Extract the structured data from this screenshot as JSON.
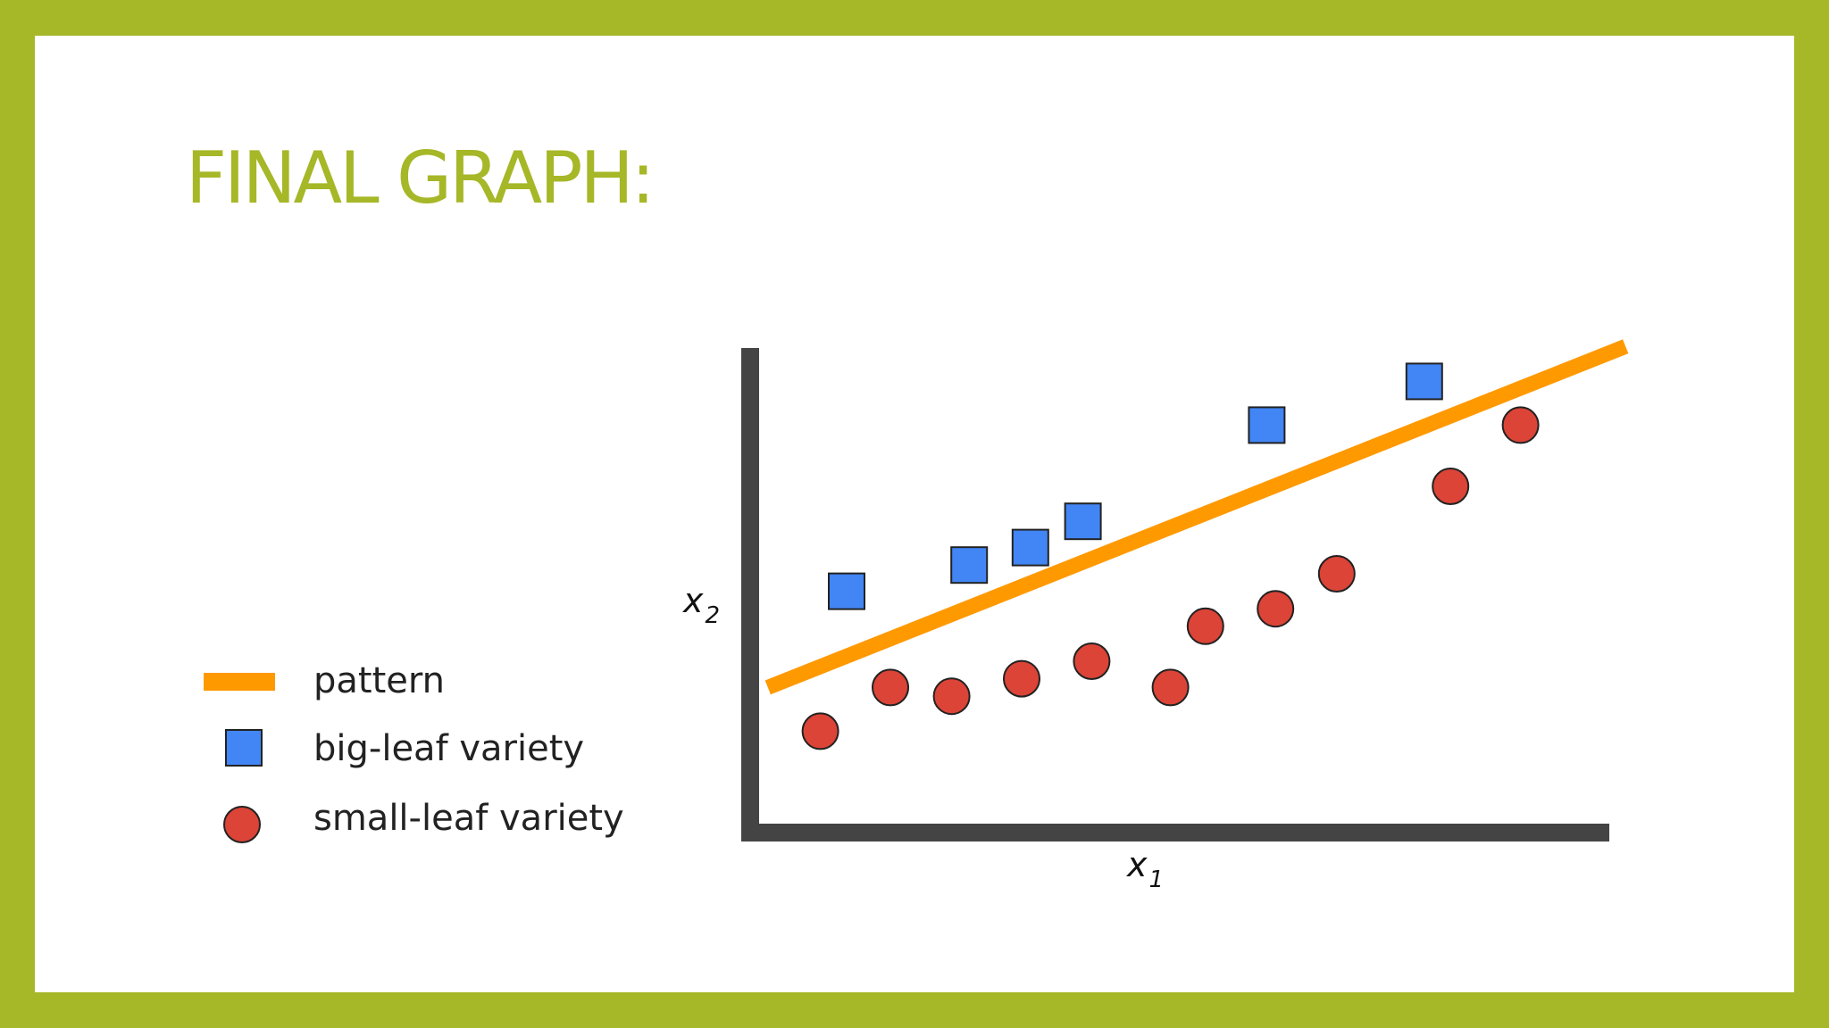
{
  "slide": {
    "title": "FINAL GRAPH:",
    "border_color": "#a6b727",
    "title_color": "#a6b727"
  },
  "chart_data": {
    "type": "scatter",
    "title": "",
    "xlabel": "x",
    "xlabel_subscript": "1",
    "ylabel": "x",
    "ylabel_subscript": "2",
    "grid": false,
    "legend_position": "left",
    "legend": [
      {
        "label": "pattern",
        "marker": "line",
        "color": "#ff9900"
      },
      {
        "label": "big-leaf variety",
        "marker": "square",
        "color": "#4285f4"
      },
      {
        "label": "small-leaf variety",
        "marker": "circle",
        "color": "#db4437"
      }
    ],
    "series": [
      {
        "name": "big-leaf variety",
        "marker": "square",
        "color": "#4285f4",
        "points": [
          [
            1.0,
            2.8
          ],
          [
            2.4,
            3.1
          ],
          [
            3.1,
            3.3
          ],
          [
            3.7,
            3.6
          ],
          [
            5.8,
            4.7
          ],
          [
            7.6,
            5.2
          ]
        ]
      },
      {
        "name": "small-leaf variety",
        "marker": "circle",
        "color": "#db4437",
        "points": [
          [
            0.7,
            1.2
          ],
          [
            1.5,
            1.7
          ],
          [
            2.2,
            1.6
          ],
          [
            3.0,
            1.8
          ],
          [
            3.8,
            2.0
          ],
          [
            4.7,
            1.7
          ],
          [
            5.1,
            2.4
          ],
          [
            5.9,
            2.6
          ],
          [
            6.6,
            3.0
          ],
          [
            7.9,
            4.0
          ],
          [
            8.7,
            4.7
          ]
        ]
      }
    ],
    "pattern_line": {
      "name": "pattern",
      "color": "#ff9900",
      "points": [
        [
          0.1,
          1.7
        ],
        [
          9.9,
          5.6
        ]
      ]
    }
  }
}
